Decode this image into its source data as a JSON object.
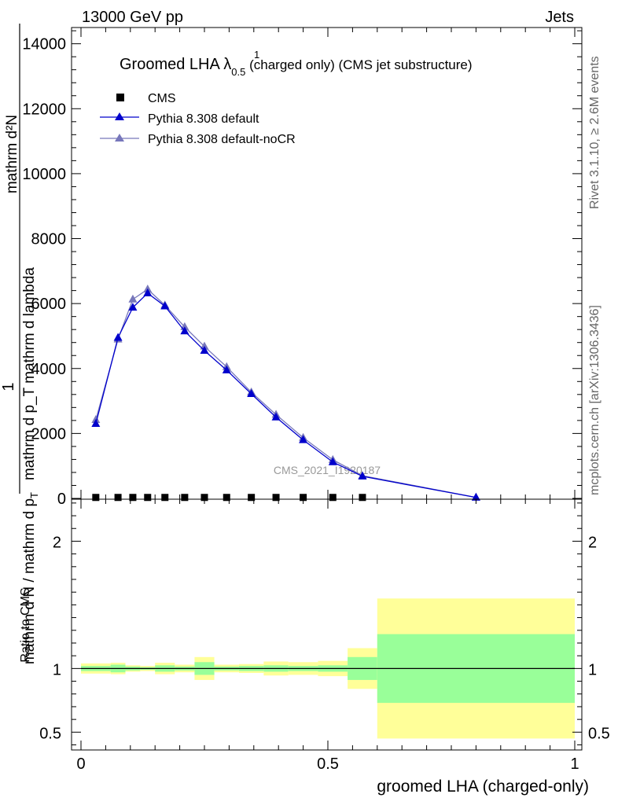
{
  "header": {
    "left": "13000 GeV pp",
    "right": "Jets"
  },
  "side_labels": {
    "rivet": "Rivet 3.1.10, ≥ 2.6M events",
    "mcplots": "mcplots.cern.ch [arXiv:1306.3436]"
  },
  "watermark": "CMS_2021_I1920187",
  "chart_data": [
    {
      "type": "line",
      "title_main": "Groomed LHA λ",
      "title_sup": "1",
      "title_sub": "0.5",
      "title_rest": " (charged only) (CMS jet substructure)",
      "ylabel_numerator": "1",
      "ylabel_denominator_line1": "mathrm d N / mathrm d p",
      "ylabel_sub": "T",
      "ylabel_denominator_line2": "mathrm d p_T mathrm d lambda",
      "ylabel_extra": "mathrm d²N",
      "xlim": [
        0,
        1
      ],
      "ylim": [
        0,
        14500
      ],
      "yticks": [
        0,
        2000,
        4000,
        6000,
        8000,
        10000,
        12000,
        14000
      ],
      "ytick_labels": [
        "0",
        "2000",
        "4000",
        "6000",
        "8000",
        "10000",
        "12000",
        "14000"
      ],
      "legend_placement": "top-left",
      "series": [
        {
          "name": "CMS",
          "color": "#000000",
          "marker": "square",
          "x": [
            0.03,
            0.075,
            0.105,
            0.135,
            0.17,
            0.21,
            0.25,
            0.295,
            0.345,
            0.395,
            0.45,
            0.51,
            0.57
          ],
          "y": [
            30,
            30,
            30,
            30,
            30,
            30,
            30,
            30,
            30,
            30,
            30,
            30,
            30
          ]
        },
        {
          "name": "Pythia 8.308 default",
          "color": "#0000cc",
          "marker": "triangle",
          "x": [
            0.03,
            0.075,
            0.105,
            0.135,
            0.17,
            0.21,
            0.25,
            0.295,
            0.345,
            0.395,
            0.45,
            0.51,
            0.57,
            0.8
          ],
          "y": [
            2300,
            4950,
            5880,
            6320,
            5920,
            5150,
            4550,
            3950,
            3220,
            2500,
            1800,
            1120,
            680,
            30
          ]
        },
        {
          "name": "Pythia 8.308 default-noCR",
          "color": "#7777bb",
          "marker": "triangle",
          "x": [
            0.03,
            0.075,
            0.105,
            0.135,
            0.17,
            0.21,
            0.25,
            0.295,
            0.345,
            0.395,
            0.45,
            0.51,
            0.57,
            0.8
          ],
          "y": [
            2420,
            4900,
            6130,
            6440,
            5950,
            5280,
            4680,
            4050,
            3270,
            2580,
            1870,
            1190,
            700,
            30
          ]
        }
      ]
    },
    {
      "type": "area",
      "ylabel": "Ratio to CMS",
      "xlabel": "groomed LHA (charged-only)",
      "xlim": [
        0,
        1
      ],
      "ylim": [
        0.36,
        2.33
      ],
      "xticks": [
        0,
        0.5,
        1
      ],
      "xtick_labels": [
        "0",
        "0.5",
        "1"
      ],
      "yticks": [
        0.5,
        1,
        2
      ],
      "ytick_labels": [
        "0.5",
        "1",
        "2"
      ],
      "bins": [
        {
          "lo": 0.0,
          "hi": 0.06,
          "stat": 0.02,
          "total": 0.04
        },
        {
          "lo": 0.06,
          "hi": 0.09,
          "stat": 0.03,
          "total": 0.045
        },
        {
          "lo": 0.09,
          "hi": 0.12,
          "stat": 0.015,
          "total": 0.025
        },
        {
          "lo": 0.12,
          "hi": 0.15,
          "stat": 0.01,
          "total": 0.02
        },
        {
          "lo": 0.15,
          "hi": 0.19,
          "stat": 0.025,
          "total": 0.045
        },
        {
          "lo": 0.19,
          "hi": 0.23,
          "stat": 0.015,
          "total": 0.03
        },
        {
          "lo": 0.23,
          "hi": 0.27,
          "stat": 0.05,
          "total": 0.09
        },
        {
          "lo": 0.27,
          "hi": 0.32,
          "stat": 0.015,
          "total": 0.03
        },
        {
          "lo": 0.32,
          "hi": 0.37,
          "stat": 0.02,
          "total": 0.035
        },
        {
          "lo": 0.37,
          "hi": 0.42,
          "stat": 0.025,
          "total": 0.055
        },
        {
          "lo": 0.42,
          "hi": 0.48,
          "stat": 0.02,
          "total": 0.05
        },
        {
          "lo": 0.48,
          "hi": 0.54,
          "stat": 0.025,
          "total": 0.06
        },
        {
          "lo": 0.54,
          "hi": 0.6,
          "stat": 0.09,
          "total": 0.16
        },
        {
          "lo": 0.6,
          "hi": 1.0,
          "stat": 0.27,
          "total": 0.55
        }
      ],
      "reference": 1,
      "colors": {
        "stat": "#99ff99",
        "total": "#ffff99",
        "line": "#000000"
      }
    }
  ]
}
